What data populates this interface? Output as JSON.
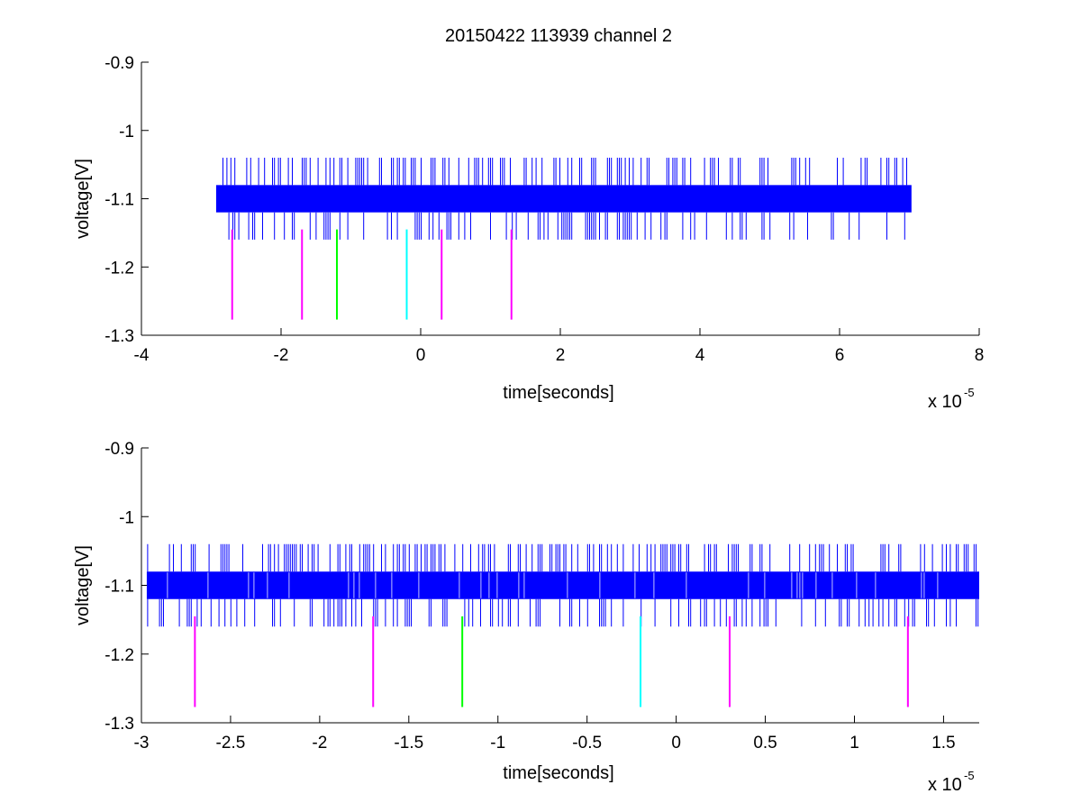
{
  "chart_data": {
    "title": "20150422 113939 channel 2",
    "colors": {
      "signal": "#0000ff",
      "magenta": "#ff00ff",
      "green": "#00ff00",
      "cyan": "#00ffff",
      "axes": "#000000"
    },
    "plots": [
      {
        "type": "line",
        "xlabel": "time[seconds]",
        "ylabel": "voltage[V]",
        "x_multiplier": "x 10",
        "x_exponent": "-5",
        "xlim": [
          -4,
          8
        ],
        "ylim": [
          -1.3,
          -0.9
        ],
        "xticks": [
          "-4",
          "-2",
          "0",
          "2",
          "4",
          "6",
          "8"
        ],
        "yticks": [
          "-0.9",
          "-1",
          "-1.1",
          "-1.2",
          "-1.3"
        ],
        "signal": {
          "x_range": [
            -2.93,
            7.03
          ],
          "levels": [
            -1.16,
            -1.12,
            -1.08,
            -1.04
          ],
          "band": [
            -1.12,
            -1.08
          ]
        },
        "markers": [
          {
            "x": -2.7,
            "color": "magenta",
            "y": [
              -1.277,
              -1.145
            ]
          },
          {
            "x": -1.7,
            "color": "magenta",
            "y": [
              -1.277,
              -1.145
            ]
          },
          {
            "x": -1.2,
            "color": "green",
            "y": [
              -1.277,
              -1.145
            ]
          },
          {
            "x": -0.2,
            "color": "cyan",
            "y": [
              -1.277,
              -1.145
            ]
          },
          {
            "x": 0.3,
            "color": "magenta",
            "y": [
              -1.277,
              -1.145
            ]
          },
          {
            "x": 1.3,
            "color": "magenta",
            "y": [
              -1.277,
              -1.145
            ]
          }
        ]
      },
      {
        "type": "line",
        "xlabel": "time[seconds]",
        "ylabel": "voltage[V]",
        "x_multiplier": "x 10",
        "x_exponent": "-5",
        "xlim": [
          -3.0,
          1.7
        ],
        "ylim": [
          -1.3,
          -0.9
        ],
        "xticks": [
          "-3",
          "-2.5",
          "-2",
          "-1.5",
          "-1",
          "-0.5",
          "0",
          "0.5",
          "1",
          "1.5"
        ],
        "yticks": [
          "-0.9",
          "-1",
          "-1.1",
          "-1.2",
          "-1.3"
        ],
        "signal": {
          "x_range": [
            -2.97,
            1.7
          ],
          "levels": [
            -1.16,
            -1.12,
            -1.08,
            -1.04
          ],
          "band": [
            -1.12,
            -1.08
          ]
        },
        "markers": [
          {
            "x": -2.7,
            "color": "magenta",
            "y": [
              -1.277,
              -1.145
            ]
          },
          {
            "x": -1.7,
            "color": "magenta",
            "y": [
              -1.277,
              -1.145
            ]
          },
          {
            "x": -1.2,
            "color": "green",
            "y": [
              -1.277,
              -1.145
            ]
          },
          {
            "x": -0.2,
            "color": "cyan",
            "y": [
              -1.277,
              -1.145
            ]
          },
          {
            "x": 0.3,
            "color": "magenta",
            "y": [
              -1.277,
              -1.145
            ]
          },
          {
            "x": 1.3,
            "color": "magenta",
            "y": [
              -1.277,
              -1.145
            ]
          }
        ]
      }
    ]
  }
}
